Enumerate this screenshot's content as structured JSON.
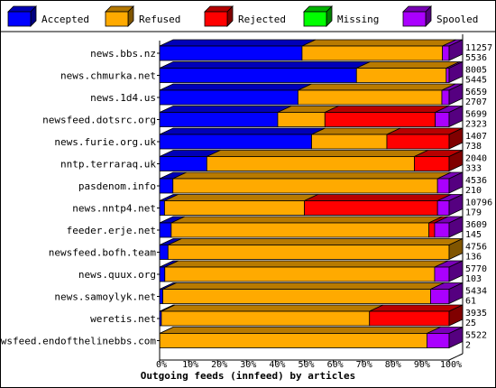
{
  "colors": {
    "Accepted": "#0000ff",
    "Refused": "#ffaa00",
    "Rejected": "#ff0000",
    "Missing": "#00ff00",
    "Spooled": "#aa00ff",
    "axis": "#000000",
    "background": "#ffffff"
  },
  "chart_data": {
    "type": "bar",
    "orientation": "horizontal",
    "stacked": true,
    "style": "3d",
    "title": "",
    "xlabel": "Outgoing feeds (innfeed) by articles",
    "ylabel": "",
    "xlim": [
      0,
      100
    ],
    "x_ticks": [
      "0%",
      "10%",
      "20%",
      "30%",
      "40%",
      "50%",
      "60%",
      "70%",
      "80%",
      "90%",
      "100%"
    ],
    "legend_position": "top",
    "legend": [
      "Accepted",
      "Refused",
      "Rejected",
      "Missing",
      "Spooled"
    ],
    "categories": [
      "news.bbs.nz",
      "news.chmurka.net",
      "news.1d4.us",
      "newsfeed.dotsrc.org",
      "news.furie.org.uk",
      "nntp.terraraq.uk",
      "pasdenom.info",
      "news.nntp4.net",
      "feeder.erje.net",
      "newsfeed.bofh.team",
      "news.quux.org",
      "news.samoylyk.net",
      "weretis.net",
      "newsfeed.endofthelinebbs.com"
    ],
    "offered_labels": [
      "11257",
      "8005",
      "5659",
      "5699",
      "1407",
      "2040",
      "4536",
      "10796",
      "3609",
      "4756",
      "5770",
      "5434",
      "3935",
      "5522"
    ],
    "accepted_labels": [
      "5536",
      "5445",
      "2707",
      "2323",
      "738",
      "333",
      "210",
      "179",
      "145",
      "136",
      "103",
      "61",
      "25",
      "2"
    ],
    "series": [
      {
        "name": "Accepted",
        "values": [
          49.2,
          68.0,
          47.8,
          40.8,
          52.5,
          16.3,
          4.6,
          1.7,
          4.0,
          2.9,
          1.8,
          1.1,
          0.6,
          0.04
        ]
      },
      {
        "name": "Refused",
        "values": [
          48.5,
          31.0,
          49.7,
          16.3,
          26.0,
          71.7,
          91.4,
          48.3,
          89.0,
          97.1,
          93.2,
          92.5,
          71.9,
          92.3
        ]
      },
      {
        "name": "Rejected",
        "values": [
          0.0,
          0.0,
          0.0,
          38.1,
          21.5,
          12.0,
          0.0,
          46.0,
          2.0,
          0.0,
          0.0,
          0.0,
          27.5,
          0.0
        ]
      },
      {
        "name": "Missing",
        "values": [
          0,
          0,
          0,
          0,
          0,
          0,
          0,
          0,
          0,
          0,
          0,
          0,
          0,
          0
        ]
      },
      {
        "name": "Spooled",
        "values": [
          2.3,
          1.0,
          2.5,
          4.8,
          0.0,
          0.0,
          4.0,
          4.0,
          5.0,
          0.0,
          5.0,
          6.4,
          0.0,
          7.66
        ]
      }
    ]
  }
}
